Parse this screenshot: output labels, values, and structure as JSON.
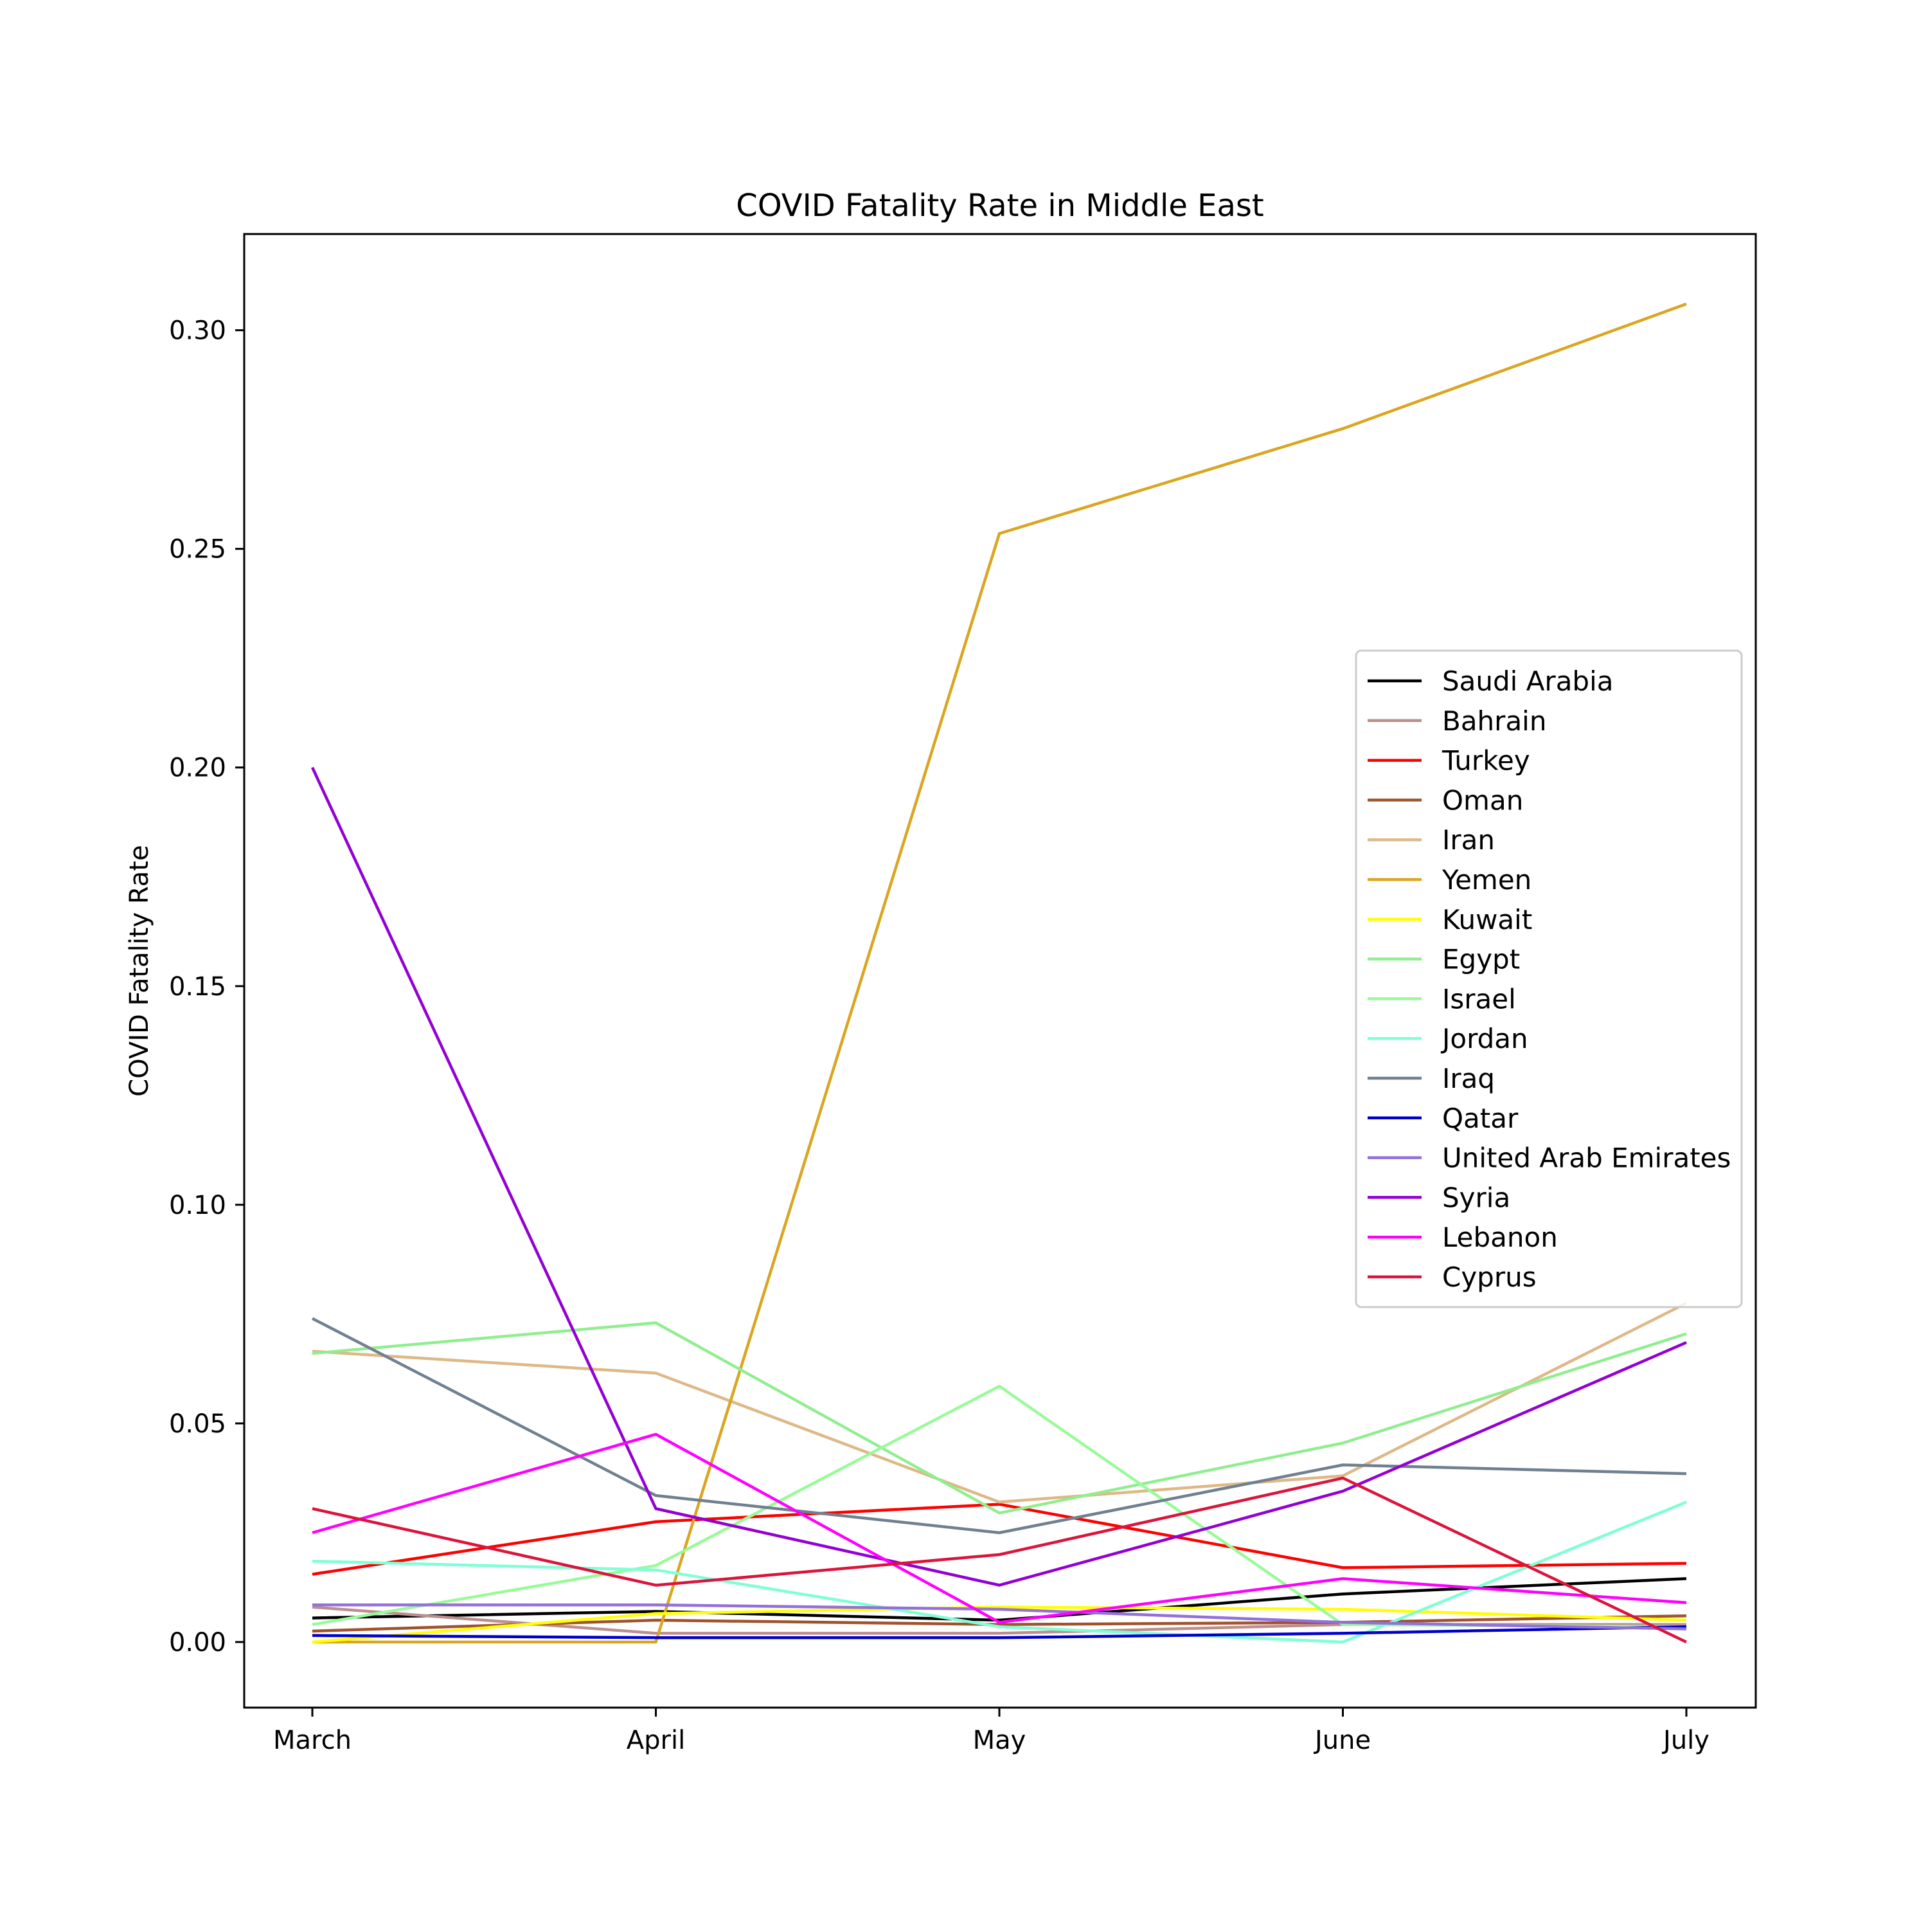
{
  "chart_data": {
    "type": "line",
    "title": "COVID Fatality Rate in Middle East",
    "xlabel": "",
    "ylabel": "COVID Fatality Rate",
    "categories": [
      "March",
      "April",
      "May",
      "June",
      "July"
    ],
    "ylim": [
      -0.015,
      0.322
    ],
    "yticks": [
      0.0,
      0.05,
      0.1,
      0.15,
      0.2,
      0.25,
      0.3
    ],
    "ytick_labels": [
      "0.00",
      "0.05",
      "0.10",
      "0.15",
      "0.20",
      "0.25",
      "0.30"
    ],
    "grid": false,
    "legend_position": "center-right",
    "series": [
      {
        "name": "Saudi Arabia",
        "color": "#000000",
        "values": [
          0.0055,
          0.007,
          0.005,
          0.011,
          0.0145
        ]
      },
      {
        "name": "Bahrain",
        "color": "#bc8f8f",
        "values": [
          0.008,
          0.002,
          0.002,
          0.004,
          0.004
        ]
      },
      {
        "name": "Turkey",
        "color": "#ff0000",
        "values": [
          0.0155,
          0.0275,
          0.0315,
          0.017,
          0.018
        ]
      },
      {
        "name": "Oman",
        "color": "#a0522d",
        "values": [
          0.0025,
          0.005,
          0.004,
          0.0045,
          0.006
        ]
      },
      {
        "name": "Iran",
        "color": "#deb887",
        "values": [
          0.0665,
          0.0615,
          0.032,
          0.038,
          0.0775
        ]
      },
      {
        "name": "Yemen",
        "color": "#daa520",
        "values": [
          0.0,
          0.0,
          0.2535,
          0.2775,
          0.306
        ]
      },
      {
        "name": "Kuwait",
        "color": "#ffff00",
        "values": [
          0.0,
          0.0065,
          0.008,
          0.0075,
          0.005
        ]
      },
      {
        "name": "Egypt",
        "color": "#90ee90",
        "values": [
          0.066,
          0.073,
          0.0295,
          0.0455,
          0.0705
        ]
      },
      {
        "name": "Israel",
        "color": "#98fb98",
        "values": [
          0.004,
          0.0175,
          0.0585,
          0.004,
          0.0035
        ]
      },
      {
        "name": "Jordan",
        "color": "#7fffd4",
        "values": [
          0.0185,
          0.0165,
          0.0035,
          0.0,
          0.032
        ]
      },
      {
        "name": "Iraq",
        "color": "#708090",
        "values": [
          0.074,
          0.0335,
          0.025,
          0.0405,
          0.0385
        ]
      },
      {
        "name": "Qatar",
        "color": "#0000cd",
        "values": [
          0.0015,
          0.001,
          0.001,
          0.002,
          0.0035
        ]
      },
      {
        "name": "United Arab Emirates",
        "color": "#9370db",
        "values": [
          0.0085,
          0.0085,
          0.0075,
          0.0045,
          0.003
        ]
      },
      {
        "name": "Syria",
        "color": "#9400d3",
        "values": [
          0.2,
          0.0305,
          0.013,
          0.0345,
          0.0685
        ]
      },
      {
        "name": "Lebanon",
        "color": "#ff00ff",
        "values": [
          0.025,
          0.0475,
          0.0045,
          0.0145,
          0.009
        ]
      },
      {
        "name": "Cyprus",
        "color": "#dc143c",
        "values": [
          0.0305,
          0.013,
          0.02,
          0.0375,
          0.0
        ]
      }
    ]
  }
}
